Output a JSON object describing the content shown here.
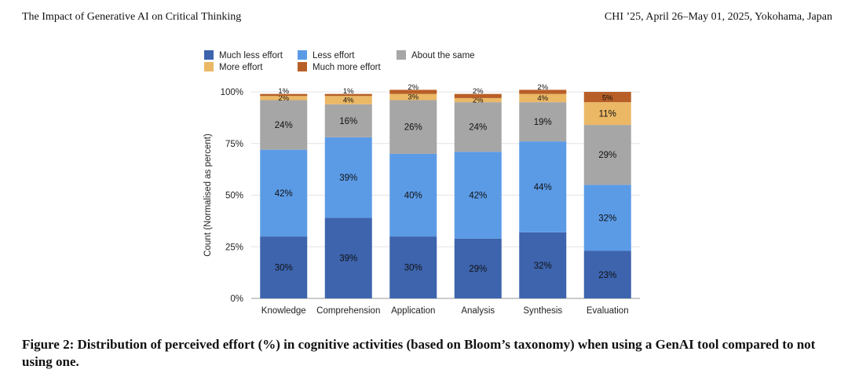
{
  "header": {
    "left": "The Impact of Generative AI on Critical Thinking",
    "right": "CHI ’25, April 26–May 01, 2025, Yokohama, Japan"
  },
  "caption": "Figure 2: Distribution of perceived effort (%) in cognitive activities (based on Bloom’s taxonomy) when using a GenAI tool compared to not using one.",
  "chart_data": {
    "type": "bar",
    "stacked": true,
    "title": "",
    "xlabel": "",
    "ylabel": "Count (Normalised as percent)",
    "ylim": [
      0,
      100
    ],
    "yticks": [
      "0%",
      "25%",
      "50%",
      "75%",
      "100%"
    ],
    "grid": true,
    "legend_position": "top",
    "categories": [
      "Knowledge",
      "Comprehension",
      "Application",
      "Analysis",
      "Synthesis",
      "Evaluation"
    ],
    "series": [
      {
        "name": "Much less effort",
        "color": "#3d64ad",
        "values": [
          30,
          39,
          30,
          29,
          32,
          23
        ],
        "labels": [
          "30%",
          "39%",
          "30%",
          "29%",
          "32%",
          "23%"
        ]
      },
      {
        "name": "Less effort",
        "color": "#5b9be6",
        "values": [
          42,
          39,
          40,
          42,
          44,
          32
        ],
        "labels": [
          "42%",
          "39%",
          "40%",
          "42%",
          "44%",
          "32%"
        ]
      },
      {
        "name": "About the same",
        "color": "#a6a6a6",
        "values": [
          24,
          16,
          26,
          24,
          19,
          29
        ],
        "labels": [
          "24%",
          "16%",
          "26%",
          "24%",
          "19%",
          "29%"
        ]
      },
      {
        "name": "More effort",
        "color": "#ebb866",
        "values": [
          2,
          4,
          3,
          2,
          4,
          11
        ],
        "labels": [
          "2%",
          "4%",
          "3%",
          "2%",
          "4%",
          "11%"
        ]
      },
      {
        "name": "Much more effort",
        "color": "#b85f27",
        "values": [
          1,
          1,
          2,
          2,
          2,
          5
        ],
        "labels": [
          "1%",
          "1%",
          "2%",
          "2%",
          "2%",
          "5%"
        ]
      }
    ]
  }
}
